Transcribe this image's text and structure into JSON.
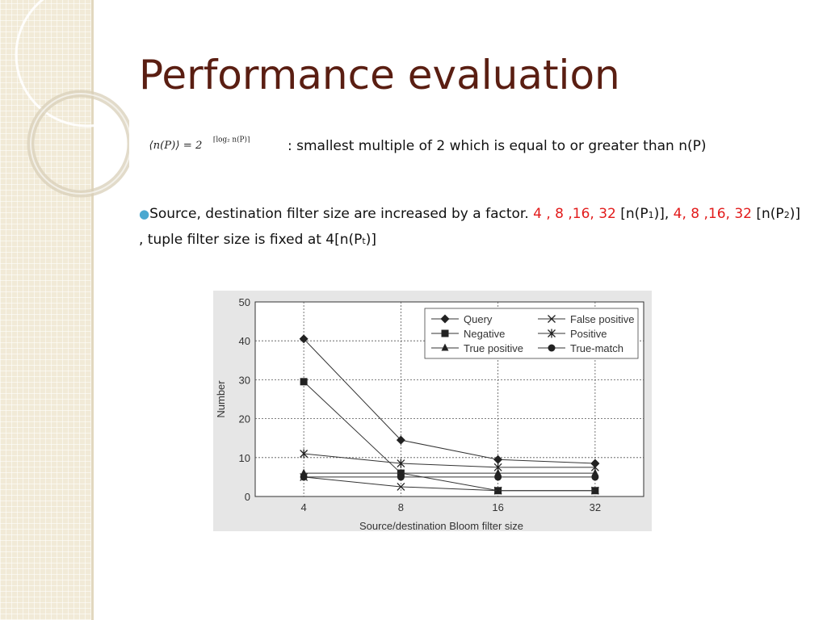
{
  "slide": {
    "title": "Performance evaluation",
    "formula": {
      "lhs": "⟨n(P)⟩ = 2",
      "exponent": "⌈log₂ n(P)⌉",
      "description": ": smallest multiple of 2 which is equal to or greater than n(P)"
    },
    "bullet": {
      "part1": "Source, destination filter size are increased by a factor. ",
      "red1": "4 , 8 ,16, 32",
      "part2": " [n(P",
      "sub1": "1",
      "part3": ")],  ",
      "red2": "4, 8 ,16, 32",
      "part4": " [n(P",
      "sub2": "2",
      "part5": ")] ,  tuple filter size is fixed at 4[n(P",
      "sub3": "t",
      "part6": ")]"
    }
  },
  "colors": {
    "title": "#5a1e12",
    "red": "#e21b1b",
    "bullet_dot": "#4aa8d0",
    "chart_bg": "#e6e6e6",
    "band": "#f1ead7"
  },
  "chart_data": {
    "type": "line",
    "xlabel": "Source/destination Bloom filter size",
    "ylabel": "Number",
    "categories": [
      "4",
      "8",
      "16",
      "32"
    ],
    "yticks": [
      "0",
      "10",
      "20",
      "30",
      "40",
      "50"
    ],
    "ylim": [
      0,
      50
    ],
    "grid": true,
    "legend_position": "top-right",
    "series": [
      {
        "name": "Query",
        "marker": "diamond",
        "values": [
          40.5,
          14.5,
          9.5,
          8.5
        ]
      },
      {
        "name": "Negative",
        "marker": "square",
        "values": [
          29.5,
          6.0,
          1.5,
          1.5
        ]
      },
      {
        "name": "True positive",
        "marker": "triangle",
        "values": [
          6.0,
          6.0,
          6.0,
          6.0
        ]
      },
      {
        "name": "False positive",
        "marker": "x",
        "values": [
          5.0,
          2.5,
          1.5,
          1.5
        ]
      },
      {
        "name": "Positive",
        "marker": "star",
        "values": [
          11.0,
          8.5,
          7.5,
          7.5
        ]
      },
      {
        "name": "True-match",
        "marker": "circle",
        "values": [
          5.0,
          5.0,
          5.0,
          5.0
        ]
      }
    ]
  }
}
